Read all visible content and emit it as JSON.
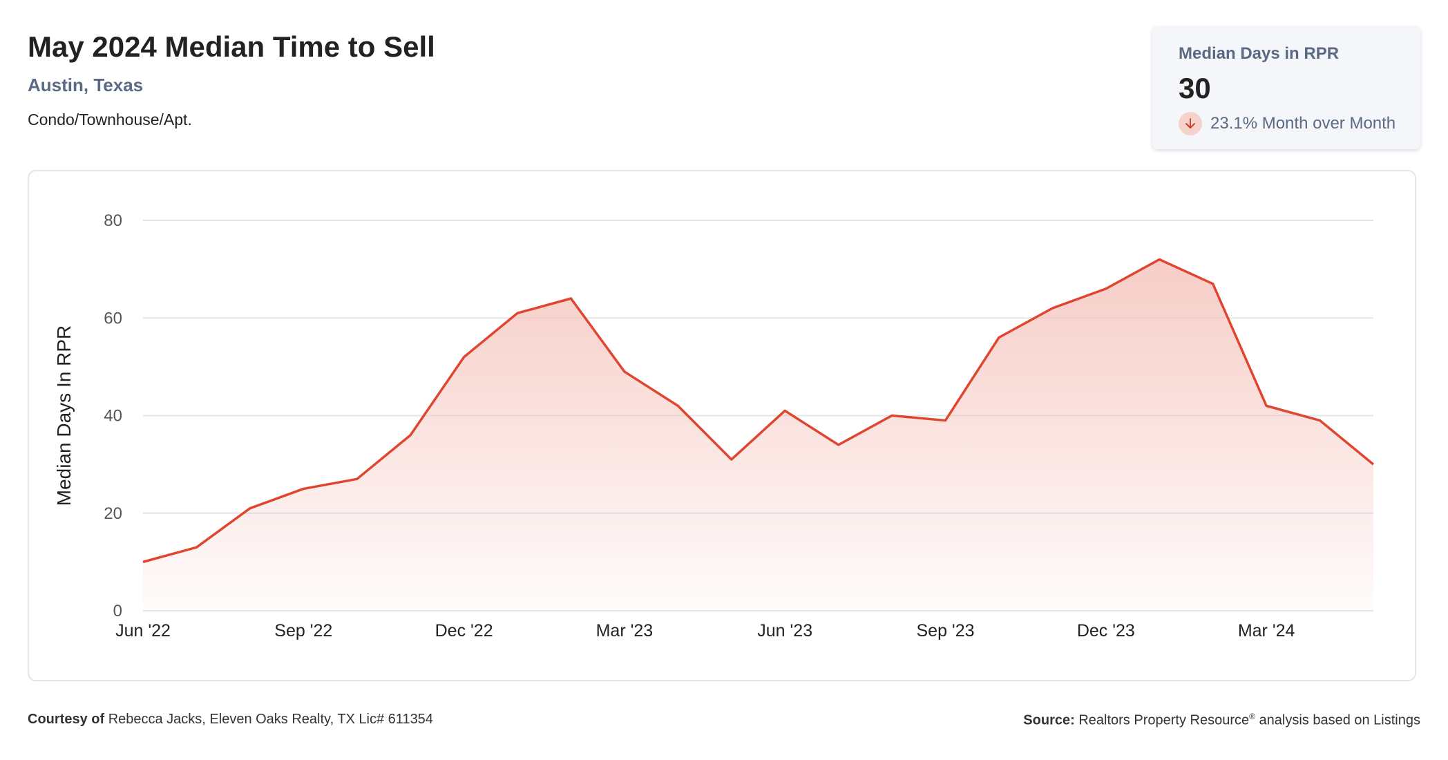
{
  "header": {
    "title": "May 2024 Median Time to Sell",
    "location": "Austin, Texas",
    "property_type": "Condo/Townhouse/Apt."
  },
  "stat_card": {
    "label": "Median Days in RPR",
    "value": "30",
    "change_text": "23.1% Month over Month",
    "change_direction": "down",
    "icon": "arrow-down-icon"
  },
  "footer": {
    "courtesy_label": "Courtesy of",
    "courtesy_text": "Rebecca Jacks, Eleven Oaks Realty, TX Lic# 611354",
    "source_label": "Source:",
    "source_text_1": "Realtors Property Resource",
    "source_reg": "®",
    "source_text_2": " analysis based on Listings"
  },
  "colors": {
    "line": "#e04530",
    "fill_top": "#f5c4bd",
    "accent_text": "#5a6a85",
    "grid": "#e3e5ea"
  },
  "chart_data": {
    "type": "area",
    "ylabel": "Median Days In RPR",
    "xlabel": "",
    "ylim": [
      0,
      80
    ],
    "yticks": [
      0,
      20,
      40,
      60,
      80
    ],
    "grid": true,
    "x": [
      "2022-06",
      "2022-07",
      "2022-08",
      "2022-09",
      "2022-10",
      "2022-11",
      "2022-12",
      "2023-01",
      "2023-02",
      "2023-03",
      "2023-04",
      "2023-05",
      "2023-06",
      "2023-07",
      "2023-08",
      "2023-09",
      "2023-10",
      "2023-11",
      "2023-12",
      "2024-01",
      "2024-02",
      "2024-03",
      "2024-04",
      "2024-05"
    ],
    "xtick_labels": [
      "Jun '22",
      "",
      "",
      "Sep '22",
      "",
      "",
      "Dec '22",
      "",
      "",
      "Mar '23",
      "",
      "",
      "Jun '23",
      "",
      "",
      "Sep '23",
      "",
      "",
      "Dec '23",
      "",
      "",
      "Mar '24",
      "",
      ""
    ],
    "series": [
      {
        "values": [
          10,
          13,
          21,
          25,
          27,
          36,
          52,
          61,
          64,
          49,
          42,
          31,
          41,
          34,
          40,
          39,
          56,
          62,
          66,
          72,
          67,
          42,
          39,
          30
        ]
      }
    ]
  }
}
